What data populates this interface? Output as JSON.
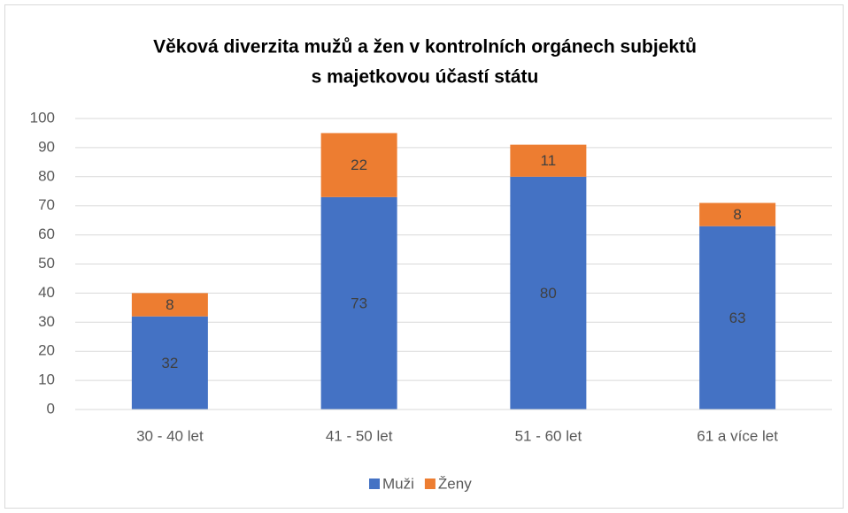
{
  "chart_data": {
    "type": "stacked_bar",
    "title": [
      "Věková diverzita mužů a žen v kontrolních orgánech subjektů",
      "s majetkovou účastí státu"
    ],
    "categories": [
      "30 - 40 let",
      "41 - 50 let",
      "51 - 60 let",
      "61 a více let"
    ],
    "series": [
      {
        "name": "Muži",
        "color": "#4472c4",
        "values": [
          32,
          73,
          80,
          63
        ]
      },
      {
        "name": "Ženy",
        "color": "#ed7d31",
        "values": [
          8,
          22,
          11,
          8
        ]
      }
    ],
    "ylim": [
      0,
      100
    ],
    "yticks": [
      0,
      10,
      20,
      30,
      40,
      50,
      60,
      70,
      80,
      90,
      100
    ],
    "grid": true,
    "legend": "bottom"
  }
}
